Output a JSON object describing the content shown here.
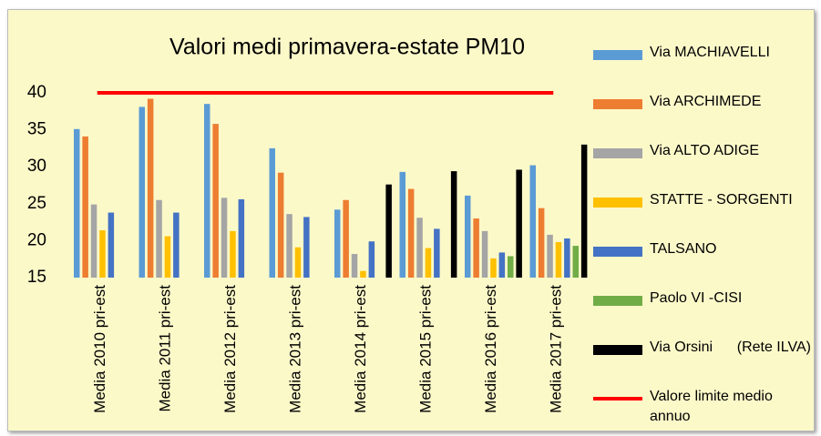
{
  "chart_data": {
    "type": "bar",
    "title": "Valori medi primavera-estate PM10",
    "categories": [
      "Media 2010 pri-est",
      "Media 2011 pri-est",
      "Media 2012 pri-est",
      "Media 2013 pri-est",
      "Media 2014 pri-est",
      "Media 2015 pri-est",
      "Media 2016 pri-est",
      "Media 2017 pri-est"
    ],
    "series": [
      {
        "name": "Via MACHIAVELLI",
        "color": "#5b9bd5",
        "values": [
          35.1,
          38.1,
          38.5,
          32.5,
          24.2,
          29.3,
          26.1,
          30.2
        ]
      },
      {
        "name": "Via ARCHIMEDE",
        "color": "#ed7d31",
        "values": [
          34.1,
          39.2,
          35.8,
          29.2,
          25.5,
          27.0,
          23.0,
          24.4
        ]
      },
      {
        "name": "Via ALTO ADIGE",
        "color": "#a5a5a5",
        "values": [
          24.9,
          25.5,
          25.8,
          23.6,
          18.2,
          23.1,
          21.3,
          20.8
        ]
      },
      {
        "name": "STATTE - SORGENTI",
        "color": "#ffc000",
        "values": [
          21.4,
          20.6,
          21.3,
          19.1,
          15.9,
          19.0,
          17.6,
          19.8
        ]
      },
      {
        "name": "TALSANO",
        "color": "#4472c4",
        "values": [
          23.8,
          23.8,
          25.6,
          23.2,
          19.9,
          21.6,
          18.4,
          20.3
        ]
      },
      {
        "name": "Paolo VI -CISI",
        "color": "#70ad47",
        "values": [
          null,
          null,
          null,
          null,
          null,
          null,
          17.9,
          19.3
        ]
      },
      {
        "name": "Via Orsini      (Rete ILVA)",
        "color": "#000000",
        "values": [
          null,
          null,
          null,
          null,
          27.6,
          29.4,
          29.6,
          33.0
        ]
      },
      {
        "name": "Valore limite medio annuo",
        "color": "#ff0000",
        "kind": "line",
        "values": [
          40,
          40,
          40,
          40,
          40,
          40,
          40,
          40
        ]
      }
    ],
    "ylim": [
      15,
      40
    ],
    "yticks": [
      15,
      20,
      25,
      30,
      35,
      40
    ],
    "grid": false,
    "legend": "right"
  }
}
